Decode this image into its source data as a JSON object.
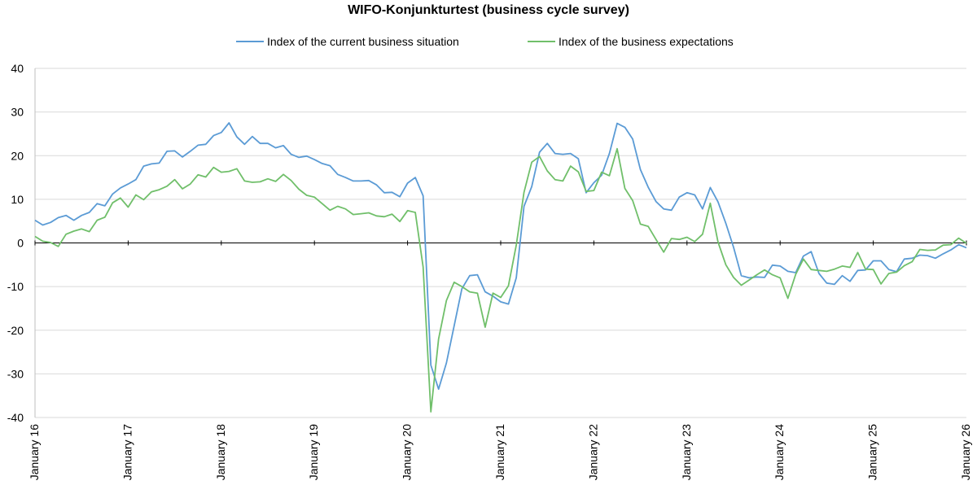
{
  "chart_data": {
    "type": "line",
    "title": "WIFO-Konjunkturtest (business cycle survey)",
    "xlabel": "",
    "ylabel": "",
    "ylim": [
      -40,
      40
    ],
    "yticks": [
      -40,
      -30,
      -20,
      -10,
      0,
      10,
      20,
      30,
      40
    ],
    "grid": true,
    "legend": "top-center",
    "x_range": [
      0,
      120
    ],
    "x_ticks": [
      {
        "pos": 0,
        "label": "January 16"
      },
      {
        "pos": 12,
        "label": "January 17"
      },
      {
        "pos": 24,
        "label": "January 18"
      },
      {
        "pos": 36,
        "label": "January 19"
      },
      {
        "pos": 48,
        "label": "January 20"
      },
      {
        "pos": 60,
        "label": "January 21"
      },
      {
        "pos": 72,
        "label": "January 22"
      },
      {
        "pos": 84,
        "label": "January 23"
      },
      {
        "pos": 96,
        "label": "January 24"
      },
      {
        "pos": 108,
        "label": "January 25"
      },
      {
        "pos": 120,
        "label": "January 26"
      }
    ],
    "series": [
      {
        "name": "Index of the current business situation",
        "color": "#5b9bd5",
        "values": [
          5.2,
          4.1,
          4.7,
          5.8,
          6.3,
          5.2,
          6.3,
          7.0,
          9.0,
          8.5,
          11.2,
          12.6,
          13.5,
          14.5,
          17.6,
          18.1,
          18.3,
          21.0,
          21.1,
          19.7,
          21.0,
          22.4,
          22.6,
          24.6,
          25.3,
          27.5,
          24.3,
          22.6,
          24.4,
          22.8,
          22.8,
          21.8,
          22.3,
          20.3,
          19.6,
          19.9,
          19.1,
          18.2,
          17.7,
          15.7,
          15.0,
          14.2,
          14.2,
          14.3,
          13.3,
          11.5,
          11.6,
          10.6,
          13.7,
          15.0,
          10.8,
          -28.0,
          -33.5,
          -27.5,
          -19.0,
          -10.5,
          -7.5,
          -7.3,
          -11.2,
          -12.2,
          -13.5,
          -14.0,
          -8.0,
          8.4,
          12.9,
          20.8,
          22.8,
          20.5,
          20.3,
          20.5,
          19.3,
          11.5,
          13.8,
          15.5,
          20.5,
          27.4,
          26.5,
          23.8,
          16.8,
          12.8,
          9.5,
          7.8,
          7.5,
          10.5,
          11.5,
          11.0,
          7.8,
          12.7,
          9.4,
          4.5,
          -1.0,
          -7.5,
          -8.0,
          -7.8,
          -7.9,
          -5.1,
          -5.3,
          -6.5,
          -6.8,
          -3.0,
          -2.0,
          -7.0,
          -9.2,
          -9.5,
          -7.5,
          -8.8,
          -6.3,
          -6.2,
          -4.1,
          -4.1,
          -6.1,
          -6.6,
          -3.7,
          -3.5,
          -2.8,
          -2.9,
          -3.5,
          -2.5,
          -1.6,
          -0.4,
          -1.1
        ]
      },
      {
        "name": "Index of the business expectations",
        "color": "#70bf6a",
        "values": [
          1.5,
          0.4,
          0.1,
          -0.8,
          2.0,
          2.7,
          3.2,
          2.6,
          5.2,
          5.9,
          9.2,
          10.3,
          8.2,
          11.0,
          9.9,
          11.7,
          12.2,
          13.0,
          14.5,
          12.4,
          13.5,
          15.6,
          15.1,
          17.3,
          16.2,
          16.4,
          17.0,
          14.2,
          13.9,
          14.0,
          14.7,
          14.1,
          15.7,
          14.3,
          12.3,
          10.9,
          10.5,
          9.0,
          7.5,
          8.4,
          7.8,
          6.5,
          6.7,
          6.9,
          6.2,
          6.0,
          6.6,
          4.9,
          7.4,
          7.0,
          -5.5,
          -38.7,
          -22.0,
          -13.2,
          -9.0,
          -10.0,
          -11.2,
          -11.5,
          -19.3,
          -11.5,
          -12.5,
          -9.8,
          -0.5,
          11.6,
          18.5,
          19.8,
          16.5,
          14.5,
          14.2,
          17.6,
          16.3,
          11.8,
          12.0,
          16.2,
          15.4,
          21.6,
          12.5,
          9.7,
          4.3,
          3.8,
          0.8,
          -2.1,
          1.0,
          0.8,
          1.3,
          0.3,
          2.0,
          9.1,
          0.2,
          -5.0,
          -7.9,
          -9.7,
          -8.5,
          -7.3,
          -6.2,
          -7.3,
          -8.0,
          -12.7,
          -7.2,
          -3.7,
          -6.1,
          -6.3,
          -6.5,
          -6.0,
          -5.3,
          -5.6,
          -2.2,
          -6.0,
          -6.1,
          -9.4,
          -7.0,
          -6.7,
          -5.2,
          -4.3,
          -1.5,
          -1.7,
          -1.6,
          -0.5,
          -0.4,
          1.1,
          -0.1
        ]
      }
    ]
  }
}
